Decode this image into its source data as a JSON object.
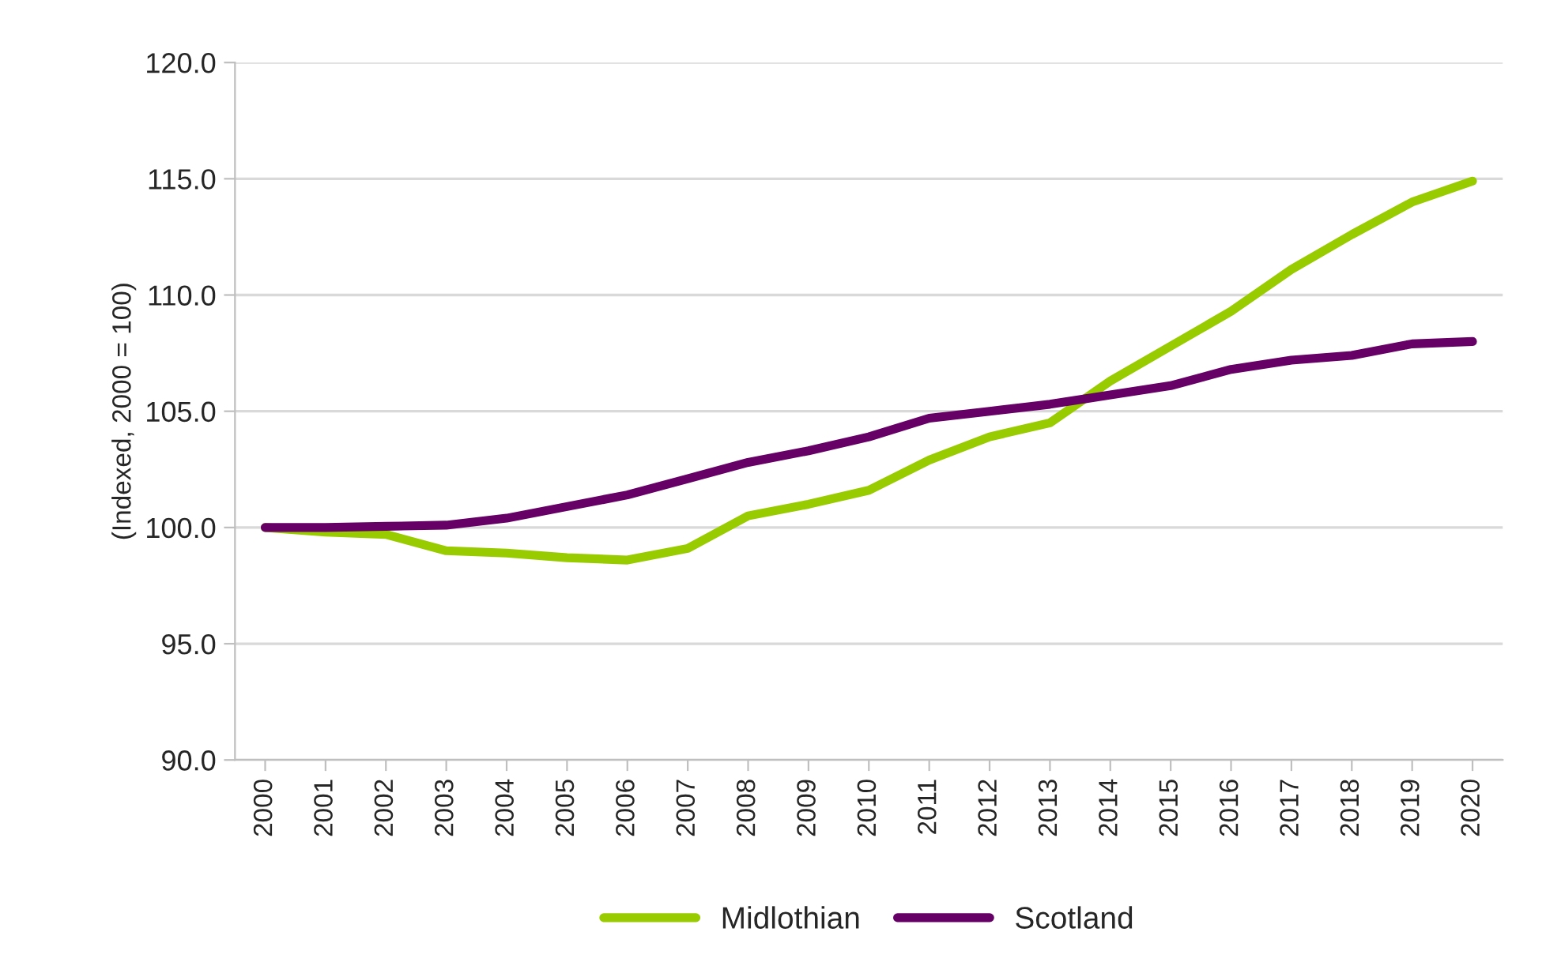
{
  "chart_data": {
    "type": "line",
    "ylabel": "(Indexed, 2000 = 100)",
    "categories": [
      "2000",
      "2001",
      "2002",
      "2003",
      "2004",
      "2005",
      "2006",
      "2007",
      "2008",
      "2009",
      "2010",
      "2011",
      "2012",
      "2013",
      "2014",
      "2015",
      "2016",
      "2017",
      "2018",
      "2019",
      "2020"
    ],
    "series": [
      {
        "name": "Midlothian",
        "color": "#99cc00",
        "values": [
          100.0,
          99.8,
          99.7,
          99.0,
          98.9,
          98.7,
          98.6,
          99.1,
          100.5,
          101.0,
          101.6,
          102.9,
          103.9,
          104.5,
          106.3,
          107.8,
          109.3,
          111.1,
          112.6,
          114.0,
          114.9
        ]
      },
      {
        "name": "Scotland",
        "color": "#660066",
        "values": [
          100.0,
          100.0,
          100.05,
          100.1,
          100.4,
          100.9,
          101.4,
          102.1,
          102.8,
          103.3,
          103.9,
          104.7,
          105.0,
          105.3,
          105.7,
          106.1,
          106.8,
          107.2,
          107.4,
          107.9,
          108.0
        ]
      }
    ],
    "ylim": [
      90,
      120
    ],
    "yticks": [
      {
        "value": 90,
        "label": "90.0"
      },
      {
        "value": 95,
        "label": "95.0"
      },
      {
        "value": 100,
        "label": "100.0"
      },
      {
        "value": 105,
        "label": "105.0"
      },
      {
        "value": 110,
        "label": "110.0"
      },
      {
        "value": 115,
        "label": "115.0"
      },
      {
        "value": 120,
        "label": "120.0"
      }
    ],
    "grid": "y",
    "legend": "bottom",
    "marker": "none",
    "line_style": "solid"
  }
}
